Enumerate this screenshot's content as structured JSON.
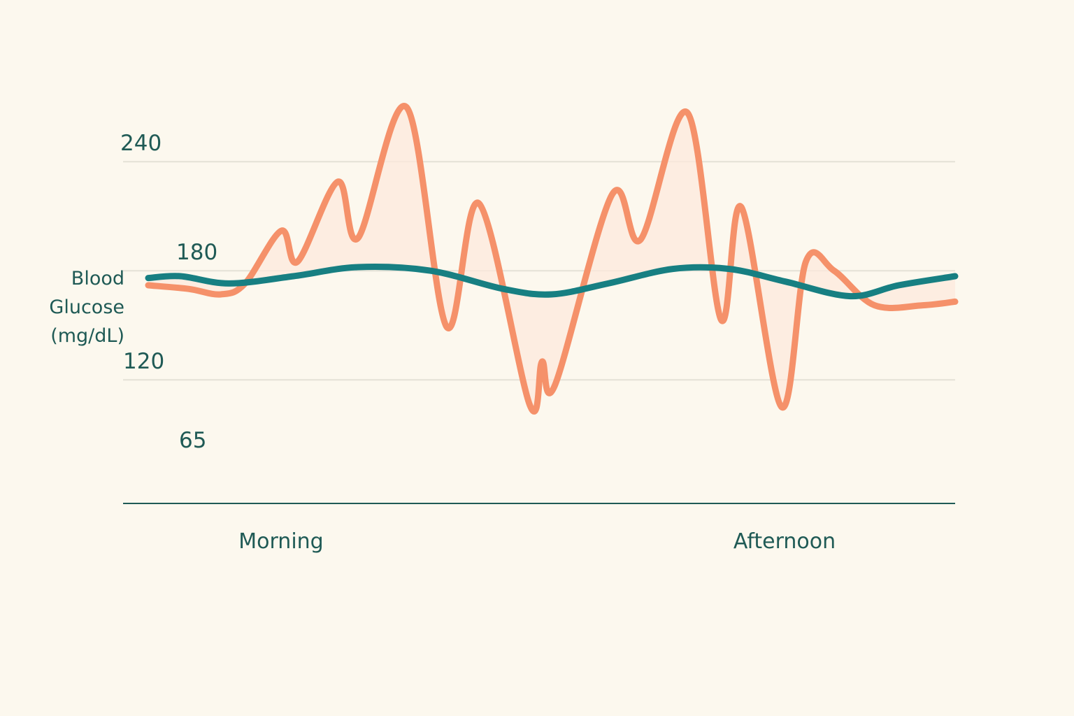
{
  "chart_data": {
    "type": "line",
    "title": "",
    "ylabel_lines": [
      "Blood",
      "Glucose",
      "(mg/dL)"
    ],
    "y_ticks": [
      {
        "label": "240",
        "value": 240,
        "gridline": true
      },
      {
        "label": "180",
        "value": 180,
        "gridline": true
      },
      {
        "label": "120",
        "value": 120,
        "gridline": true
      },
      {
        "label": "65",
        "value": 65,
        "gridline": false
      }
    ],
    "x_categories": [
      "Morning",
      "Afternoon"
    ],
    "x_range": [
      0,
      100
    ],
    "ylim": [
      52,
      280
    ],
    "grid": true,
    "legend": "none",
    "colors": {
      "background": "#fcf8ee",
      "volatile": "#f5916a",
      "volatile_fill": "#fde8dc",
      "stable": "#177f82",
      "grid": "#e4e1d6",
      "axis": "#1f5a55",
      "text": "#1f5a55"
    },
    "series": [
      {
        "values": [
          [
            0,
            172
          ],
          [
            5,
            170
          ],
          [
            9,
            167
          ],
          [
            12,
            173
          ],
          [
            16.5,
            202
          ],
          [
            18.5,
            185
          ],
          [
            23.5,
            229
          ],
          [
            26,
            198
          ],
          [
            32,
            270
          ],
          [
            37,
            149
          ],
          [
            41,
            217
          ],
          [
            47.3,
            106
          ],
          [
            48.8,
            130
          ],
          [
            50.4,
            117
          ],
          [
            57.5,
            222
          ],
          [
            61,
            197
          ],
          [
            66.8,
            267
          ],
          [
            71,
            153
          ],
          [
            73.5,
            215
          ],
          [
            78.5,
            105
          ],
          [
            81.5,
            185
          ],
          [
            85,
            180
          ],
          [
            90,
            161
          ],
          [
            96,
            161
          ],
          [
            100,
            163
          ]
        ]
      },
      {
        "values": [
          [
            0,
            176
          ],
          [
            4,
            177
          ],
          [
            10,
            173
          ],
          [
            18,
            177
          ],
          [
            26,
            182
          ],
          [
            35,
            180
          ],
          [
            44,
            170
          ],
          [
            50,
            167
          ],
          [
            57,
            173
          ],
          [
            65,
            181
          ],
          [
            72,
            181
          ],
          [
            79,
            174
          ],
          [
            87,
            166
          ],
          [
            93,
            172
          ],
          [
            100,
            177
          ]
        ]
      }
    ]
  }
}
